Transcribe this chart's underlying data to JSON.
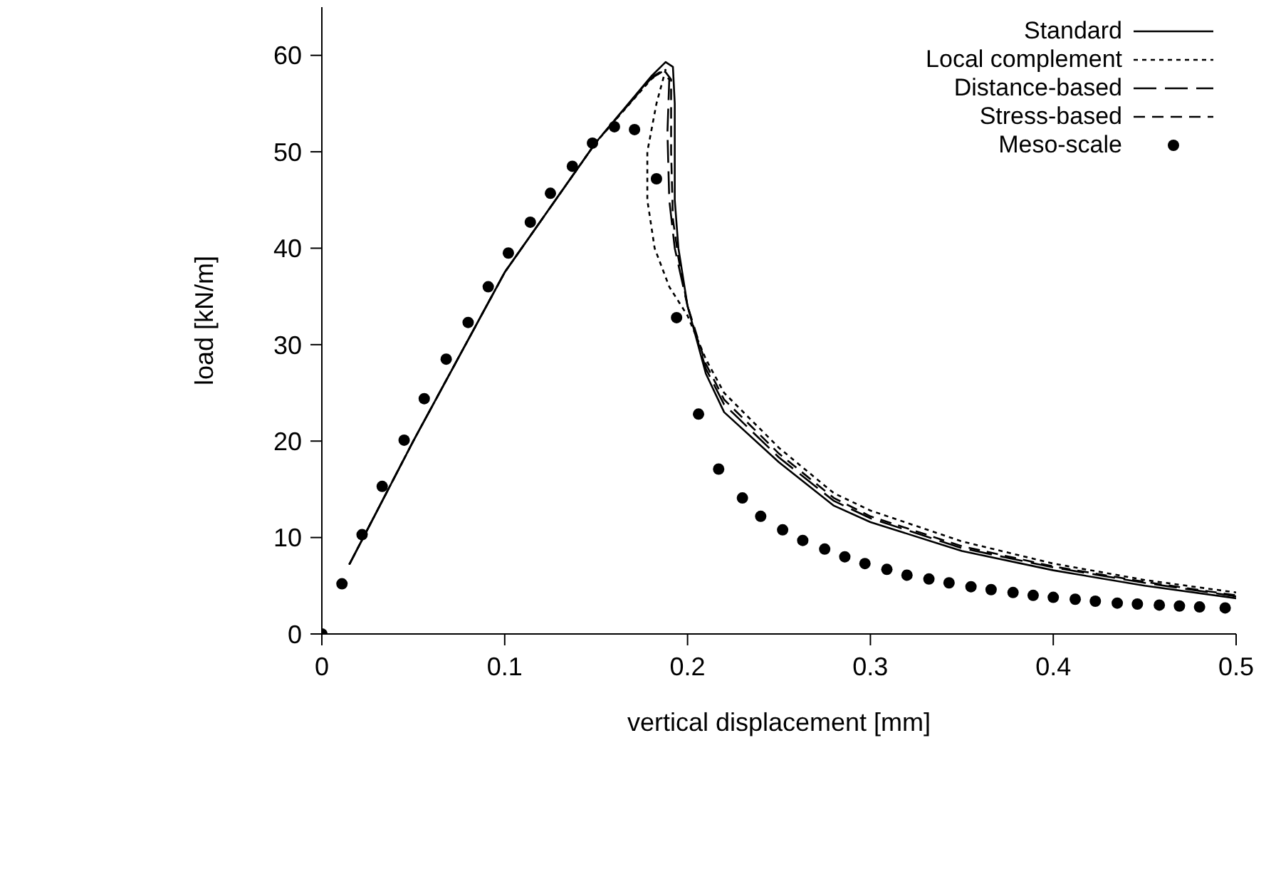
{
  "chart_data": {
    "type": "line",
    "xlabel": "vertical displacement [mm]",
    "ylabel": "load [kN/m]",
    "xlim": [
      0,
      0.5
    ],
    "xticks": [
      0,
      0.1,
      0.2,
      0.3,
      0.4,
      0.5
    ],
    "ylim": [
      0,
      65
    ],
    "yticks": [
      0,
      10,
      20,
      30,
      40,
      50,
      60
    ],
    "grid": false,
    "legend": "top right",
    "series": [
      {
        "name": "Standard",
        "color": "#000000",
        "line_style": "solid",
        "x": [
          0.015,
          0.05,
          0.1,
          0.15,
          0.18,
          0.188,
          0.192,
          0.193,
          0.193,
          0.195,
          0.2,
          0.21,
          0.22,
          0.25,
          0.28,
          0.3,
          0.35,
          0.4,
          0.45,
          0.5
        ],
        "values": [
          7.2,
          20,
          37.5,
          51,
          57.8,
          59.3,
          58.8,
          55,
          45,
          40,
          34,
          27,
          23,
          17.8,
          13.3,
          11.6,
          8.6,
          6.6,
          5.0,
          3.7
        ]
      },
      {
        "name": "Local complement",
        "color": "#000000",
        "line_style": "dotted",
        "x": [
          0.015,
          0.05,
          0.1,
          0.15,
          0.18,
          0.185,
          0.188,
          0.183,
          0.178,
          0.178,
          0.182,
          0.19,
          0.2,
          0.21,
          0.22,
          0.25,
          0.28,
          0.3,
          0.35,
          0.4,
          0.45,
          0.5
        ],
        "values": [
          7.2,
          20,
          37.5,
          51,
          57.5,
          58.2,
          58.5,
          55,
          50,
          45,
          40,
          36,
          33,
          28.5,
          25,
          19.3,
          14.6,
          12.8,
          9.6,
          7.3,
          5.6,
          4.3
        ]
      },
      {
        "name": "Distance-based",
        "color": "#000000",
        "line_style": "dashed",
        "x": [
          0.015,
          0.05,
          0.1,
          0.15,
          0.18,
          0.186,
          0.19,
          0.189,
          0.19,
          0.193,
          0.2,
          0.21,
          0.22,
          0.25,
          0.28,
          0.3,
          0.35,
          0.4,
          0.45,
          0.5
        ],
        "values": [
          7.2,
          20,
          37.5,
          51,
          57.6,
          58.3,
          57.5,
          52,
          45,
          40,
          34,
          27.5,
          23.8,
          18.3,
          13.8,
          12.0,
          8.9,
          6.9,
          5.3,
          3.9
        ]
      },
      {
        "name": "Stress-based",
        "color": "#000000",
        "line_style": "dashed",
        "x": [
          0.015,
          0.05,
          0.1,
          0.15,
          0.18,
          0.187,
          0.191,
          0.191,
          0.192,
          0.195,
          0.2,
          0.21,
          0.22,
          0.25,
          0.28,
          0.3,
          0.35,
          0.4,
          0.45,
          0.5
        ],
        "values": [
          7.2,
          20,
          37.5,
          51,
          57.7,
          58.5,
          57.5,
          50,
          43,
          39,
          34,
          28,
          24.3,
          18.7,
          14.1,
          12.2,
          9.1,
          7.0,
          5.4,
          4.0
        ]
      },
      {
        "name": "Meso-scale",
        "type": "scatter",
        "color": "#000000",
        "marker": "circle",
        "x": [
          0,
          0.011,
          0.022,
          0.033,
          0.045,
          0.056,
          0.068,
          0.08,
          0.091,
          0.102,
          0.114,
          0.125,
          0.137,
          0.148,
          0.16,
          0.171,
          0.183,
          0.194,
          0.206,
          0.217,
          0.23,
          0.24,
          0.252,
          0.263,
          0.275,
          0.286,
          0.297,
          0.309,
          0.32,
          0.332,
          0.343,
          0.355,
          0.366,
          0.378,
          0.389,
          0.4,
          0.412,
          0.423,
          0.435,
          0.446,
          0.458,
          0.469,
          0.48,
          0.494
        ],
        "values": [
          0,
          5.2,
          10.3,
          15.3,
          20.1,
          24.4,
          28.5,
          32.3,
          36,
          39.5,
          42.7,
          45.7,
          48.5,
          50.9,
          52.6,
          52.3,
          47.2,
          32.8,
          22.8,
          17.1,
          14.1,
          12.2,
          10.8,
          9.7,
          8.8,
          8.0,
          7.3,
          6.7,
          6.1,
          5.7,
          5.3,
          4.9,
          4.6,
          4.3,
          4.0,
          3.8,
          3.6,
          3.4,
          3.2,
          3.1,
          3.0,
          2.9,
          2.8,
          2.7
        ]
      }
    ]
  }
}
